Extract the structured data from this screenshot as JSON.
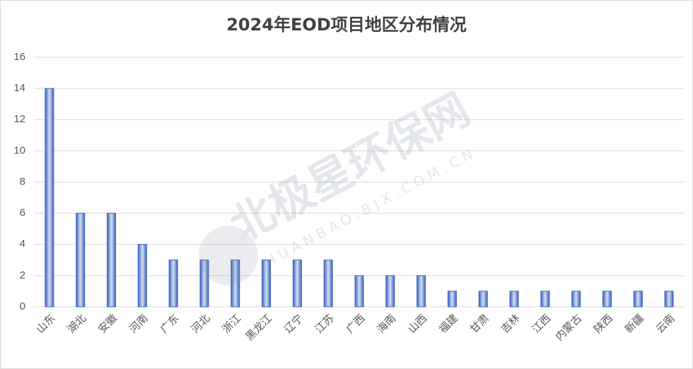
{
  "chart_data": {
    "type": "bar",
    "title": "2024年EOD项目地区分布情况",
    "categories": [
      "山东",
      "湖北",
      "安徽",
      "河南",
      "广东",
      "河北",
      "浙江",
      "黑龙江",
      "辽宁",
      "江苏",
      "广西",
      "海南",
      "山西",
      "福建",
      "甘肃",
      "吉林",
      "江西",
      "内蒙古",
      "陕西",
      "新疆",
      "云南"
    ],
    "values": [
      14,
      6,
      6,
      4,
      3,
      3,
      3,
      3,
      3,
      3,
      2,
      2,
      2,
      1,
      1,
      1,
      1,
      1,
      1,
      1,
      1
    ],
    "color": "#3a64c0",
    "ylim": [
      0,
      16
    ],
    "yticks": [
      0,
      2,
      4,
      6,
      8,
      10,
      12,
      14,
      16
    ],
    "grid": true,
    "watermark": {
      "title": "北极星环保网",
      "url": "HUANBAO.BJX.COM.CN"
    }
  }
}
